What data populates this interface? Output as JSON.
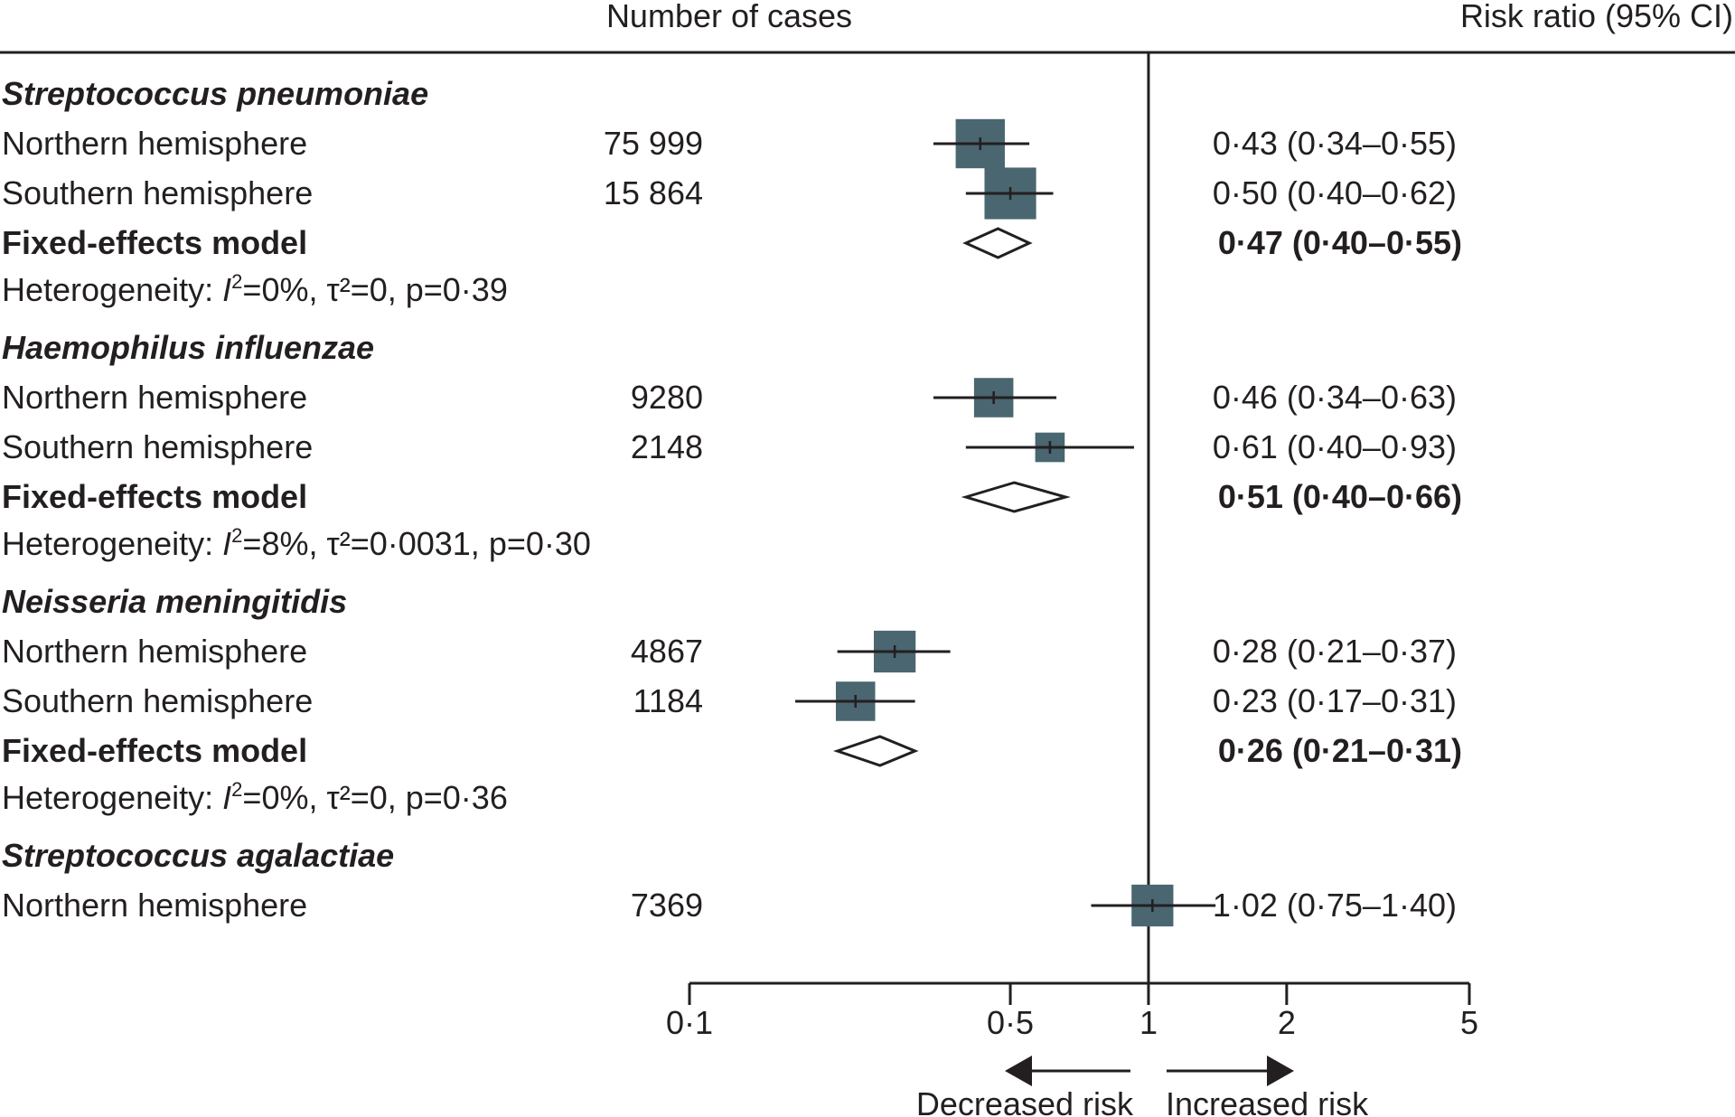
{
  "chart_data": {
    "type": "forest",
    "header": {
      "cases": "Number of cases",
      "rr": "Risk ratio (95% CI)"
    },
    "x_scale": "log",
    "xlim": [
      0.1,
      5
    ],
    "ticks": [
      {
        "value": 0.1,
        "label": "0·1"
      },
      {
        "value": 0.5,
        "label": "0·5"
      },
      {
        "value": 1,
        "label": "1"
      },
      {
        "value": 2,
        "label": "2"
      },
      {
        "value": 5,
        "label": "5"
      }
    ],
    "reference_line": 1,
    "arrows": {
      "left": "Decreased risk",
      "right": "Increased risk"
    },
    "marker_color": "#4a6670",
    "groups": [
      {
        "name": "Streptococcus pneumoniae",
        "studies": [
          {
            "label": "Northern hemisphere",
            "cases": "75 999",
            "rr": 0.43,
            "lo": 0.34,
            "hi": 0.55,
            "text": "0·43 (0·34–0·55)",
            "weight": 1.0
          },
          {
            "label": "Southern hemisphere",
            "cases": "15 864",
            "rr": 0.5,
            "lo": 0.4,
            "hi": 0.62,
            "text": "0·50 (0·40–0·62)",
            "weight": 1.05
          }
        ],
        "pooled": {
          "label": "Fixed-effects model",
          "rr": 0.47,
          "lo": 0.4,
          "hi": 0.55,
          "text": "0·47 (0·40–0·55)"
        },
        "heterogeneity": {
          "prefix": "Heterogeneity: ",
          "i2_symbol": "I",
          "sup": "2",
          "rest": "=0%, τ²=0, p=0·39"
        }
      },
      {
        "name": "Haemophilus influenzae",
        "studies": [
          {
            "label": "Northern hemisphere",
            "cases": "9280",
            "rr": 0.46,
            "lo": 0.34,
            "hi": 0.63,
            "text": "0·46 (0·34–0·63)",
            "weight": 0.8
          },
          {
            "label": "Southern hemisphere",
            "cases": "2148",
            "rr": 0.61,
            "lo": 0.4,
            "hi": 0.93,
            "text": "0·61 (0·40–0·93)",
            "weight": 0.6
          }
        ],
        "pooled": {
          "label": "Fixed-effects model",
          "rr": 0.51,
          "lo": 0.4,
          "hi": 0.66,
          "text": "0·51 (0·40–0·66)"
        },
        "heterogeneity": {
          "prefix": "Heterogeneity: ",
          "i2_symbol": "I",
          "sup": "2",
          "rest": "=8%, τ²=0·0031, p=0·30"
        }
      },
      {
        "name": "Neisseria meningitidis",
        "studies": [
          {
            "label": "Northern hemisphere",
            "cases": "4867",
            "rr": 0.28,
            "lo": 0.21,
            "hi": 0.37,
            "text": "0·28 (0·21–0·37)",
            "weight": 0.85
          },
          {
            "label": "Southern hemisphere",
            "cases": "1184",
            "rr": 0.23,
            "lo": 0.17,
            "hi": 0.31,
            "text": "0·23 (0·17–0·31)",
            "weight": 0.8
          }
        ],
        "pooled": {
          "label": "Fixed-effects model",
          "rr": 0.26,
          "lo": 0.21,
          "hi": 0.31,
          "text": "0·26 (0·21–0·31)"
        },
        "heterogeneity": {
          "prefix": "Heterogeneity: ",
          "i2_symbol": "I",
          "sup": "2",
          "rest": "=0%, τ²=0, p=0·36"
        }
      },
      {
        "name": "Streptococcus agalactiae",
        "studies": [
          {
            "label": "Northern hemisphere",
            "cases": "7369",
            "rr": 1.02,
            "lo": 0.75,
            "hi": 1.4,
            "text": "1·02 (0·75–1·40)",
            "weight": 0.85
          }
        ],
        "pooled": null,
        "heterogeneity": null
      }
    ]
  }
}
